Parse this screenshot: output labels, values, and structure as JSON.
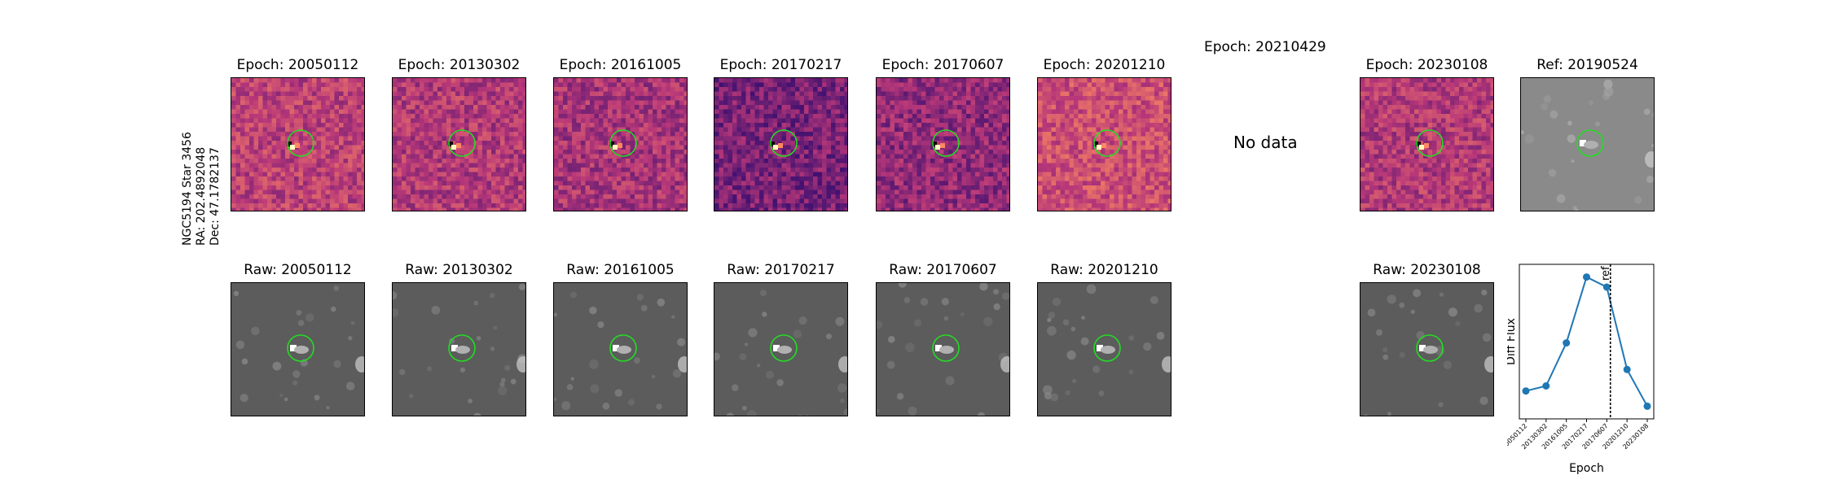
{
  "object": {
    "name": "NGC5194 Star 3456",
    "ra": "RA: 202.4892048",
    "dec": "Dec: 47.1782137"
  },
  "diff_panels": [
    {
      "title": "Epoch: 20050112"
    },
    {
      "title": "Epoch: 20130302"
    },
    {
      "title": "Epoch: 20161005"
    },
    {
      "title": "Epoch: 20170217"
    },
    {
      "title": "Epoch: 20170607"
    },
    {
      "title": "Epoch: 20201210"
    },
    {
      "title": "Epoch: 20210429"
    },
    {
      "title": "Epoch: 20230108"
    }
  ],
  "missing": {
    "label": "No data"
  },
  "ref_panel": {
    "title": "Ref: 20190524"
  },
  "raw_panels": [
    {
      "title": "Raw: 20050112"
    },
    {
      "title": "Raw: 20130302"
    },
    {
      "title": "Raw: 20161005"
    },
    {
      "title": "Raw: 20170217"
    },
    {
      "title": "Raw: 20170607"
    },
    {
      "title": "Raw: 20201210"
    },
    {
      "title": "Raw: 20230108"
    }
  ],
  "colors": {
    "aperture": "#22dd22",
    "line": "#1f77b4",
    "diff_low": "#3b0f70",
    "diff_mid": "#b73779",
    "diff_high": "#fc8961"
  },
  "chart_data": {
    "type": "line",
    "x": [
      "20050112",
      "20130302",
      "20161005",
      "20170217",
      "20170607",
      "20201210",
      "20230108"
    ],
    "series": [
      {
        "values": [
          0.1,
          0.14,
          0.48,
          1.0,
          0.92,
          0.27,
          -0.02
        ]
      }
    ],
    "ylabel": "Diff Flux",
    "xlabel": "Epoch",
    "ref_line": {
      "label": "ref",
      "position": "between 20170607 and 20201210"
    },
    "ylim": [
      -0.12,
      1.1
    ]
  }
}
